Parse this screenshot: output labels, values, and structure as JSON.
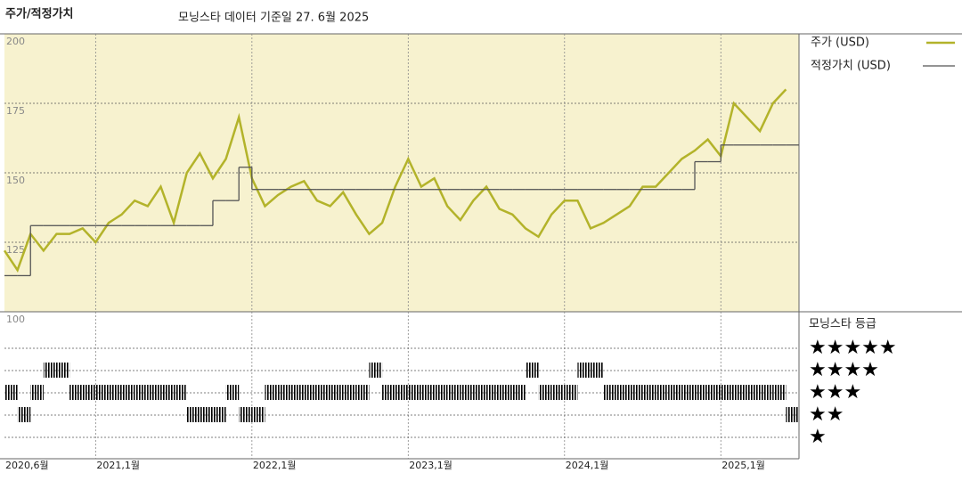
{
  "chart_data": {
    "type": "line",
    "title": "주가/적정가치",
    "subtitle": "모닝스타 데이터 기준일 27. 6월 2025",
    "x": [
      "2020-06",
      "2020-07",
      "2020-08",
      "2020-09",
      "2020-10",
      "2020-11",
      "2020-12",
      "2021-01",
      "2021-02",
      "2021-03",
      "2021-04",
      "2021-05",
      "2021-06",
      "2021-07",
      "2021-08",
      "2021-09",
      "2021-10",
      "2021-11",
      "2021-12",
      "2022-01",
      "2022-02",
      "2022-03",
      "2022-04",
      "2022-05",
      "2022-06",
      "2022-07",
      "2022-08",
      "2022-09",
      "2022-10",
      "2022-11",
      "2022-12",
      "2023-01",
      "2023-02",
      "2023-03",
      "2023-04",
      "2023-05",
      "2023-06",
      "2023-07",
      "2023-08",
      "2023-09",
      "2023-10",
      "2023-11",
      "2023-12",
      "2024-01",
      "2024-02",
      "2024-03",
      "2024-04",
      "2024-05",
      "2024-06",
      "2024-07",
      "2024-08",
      "2024-09",
      "2024-10",
      "2024-11",
      "2024-12",
      "2025-01",
      "2025-02",
      "2025-03",
      "2025-04",
      "2025-05",
      "2025-06"
    ],
    "xlim": [
      "2020-06",
      "2025-07"
    ],
    "xticks": [
      {
        "value": "2020-06",
        "label": "2020,6월"
      },
      {
        "value": "2021-01",
        "label": "2021,1월"
      },
      {
        "value": "2022-01",
        "label": "2022,1월"
      },
      {
        "value": "2023-01",
        "label": "2023,1월"
      },
      {
        "value": "2024-01",
        "label": "2024,1월"
      },
      {
        "value": "2025-01",
        "label": "2025,1월"
      }
    ],
    "ylim": [
      100,
      200
    ],
    "yticks": [
      100,
      125,
      150,
      175,
      200
    ],
    "grid": true,
    "series": [
      {
        "name": "주가 (USD)",
        "color": "#b3b32a",
        "values": [
          122,
          115,
          128,
          122,
          128,
          128,
          130,
          125,
          132,
          135,
          140,
          138,
          145,
          132,
          150,
          157,
          148,
          155,
          170,
          148,
          138,
          142,
          145,
          147,
          140,
          138,
          143,
          135,
          128,
          132,
          145,
          155,
          145,
          148,
          138,
          133,
          140,
          145,
          137,
          135,
          130,
          127,
          135,
          140,
          140,
          130,
          132,
          135,
          138,
          145,
          145,
          150,
          155,
          158,
          162,
          156,
          175,
          170,
          165,
          175,
          180
        ]
      },
      {
        "name": "적정가치 (USD)",
        "color": "#555555",
        "values": [
          113,
          113,
          131,
          131,
          131,
          131,
          131,
          131,
          131,
          131,
          131,
          131,
          131,
          131,
          131,
          131,
          140,
          140,
          152,
          144,
          144,
          144,
          144,
          144,
          144,
          144,
          144,
          144,
          144,
          144,
          144,
          144,
          144,
          144,
          144,
          144,
          144,
          144,
          144,
          144,
          144,
          144,
          144,
          144,
          144,
          144,
          144,
          144,
          144,
          144,
          144,
          144,
          144,
          154,
          154,
          160,
          160,
          160,
          160,
          160,
          160
        ]
      }
    ],
    "ratings": {
      "name": "모닝스타 등급",
      "labels": [
        "★★★★★",
        "★★★★",
        "★★★",
        "★★",
        "★"
      ],
      "values": [
        3,
        2,
        3,
        4,
        4,
        3,
        3,
        3,
        3,
        3,
        3,
        3,
        3,
        3,
        2,
        2,
        2,
        3,
        2,
        2,
        3,
        3,
        3,
        3,
        3,
        3,
        3,
        3,
        4,
        3,
        3,
        3,
        3,
        3,
        3,
        3,
        3,
        3,
        3,
        3,
        4,
        3,
        3,
        3,
        4,
        4,
        3,
        3,
        3,
        3,
        3,
        3,
        3,
        3,
        3,
        3,
        3,
        3,
        3,
        3,
        2
      ]
    }
  }
}
